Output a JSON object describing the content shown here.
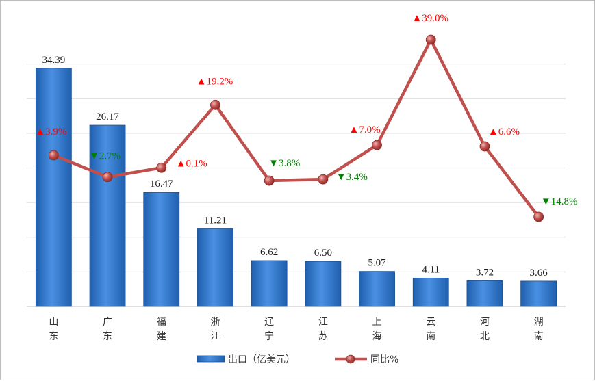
{
  "chart_data": {
    "type": "bar",
    "categories": [
      "山东",
      "广东",
      "福建",
      "浙江",
      "辽宁",
      "江苏",
      "上海",
      "云南",
      "河北",
      "湖南"
    ],
    "series": [
      {
        "name": "出口（亿美元）",
        "type": "bar",
        "values": [
          34.39,
          26.17,
          16.47,
          11.21,
          6.62,
          6.5,
          5.07,
          4.11,
          3.72,
          3.66
        ],
        "labels": [
          "34.39",
          "26.17",
          "16.47",
          "11.21",
          "6.62",
          "6.50",
          "5.07",
          "4.11",
          "3.72",
          "3.66"
        ],
        "color": "#2e75c9"
      },
      {
        "name": "同比%",
        "type": "line",
        "values": [
          3.9,
          -2.7,
          0.1,
          19.2,
          -3.8,
          -3.4,
          7.0,
          39.0,
          6.6,
          -14.8
        ],
        "labels": [
          "▲3.9%",
          "▼2.7%",
          "▲0.1%",
          "▲19.2%",
          "▼3.8%",
          "▼3.4%",
          "▲7.0%",
          "▲39.0%",
          "▲6.6%",
          "▼14.8%"
        ],
        "color": "#c0504d"
      }
    ],
    "grid": true,
    "legend": "bottom",
    "up_color": "#ff0000",
    "down_color": "#008000"
  }
}
